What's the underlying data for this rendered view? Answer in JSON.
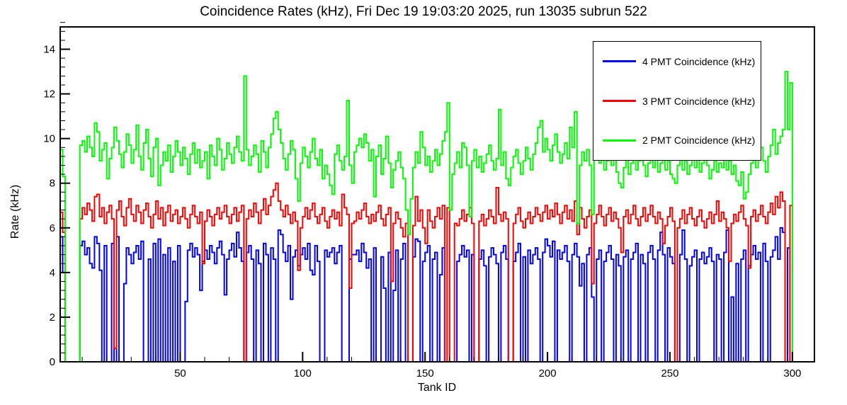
{
  "header": {
    "title": "Coincidence Rates (kHz), Fri Dec 19 19:03:20 2025, run 13035 subrun 522"
  },
  "chart_data": {
    "type": "step-histogram",
    "title": "Coincidence Rates (kHz), Fri Dec 19 19:03:20 2025, run 13035 subrun 522",
    "xlabel": "Tank ID",
    "ylabel": "Rate (kHz)",
    "xlim": [
      1,
      309
    ],
    "ylim": [
      0,
      15
    ],
    "x_bin_start": 1,
    "x_major_ticks": [
      50,
      100,
      150,
      200,
      250,
      300
    ],
    "x_minor_step": 10,
    "y_major_ticks": [
      0,
      2,
      4,
      6,
      8,
      10,
      12,
      14
    ],
    "y_minor_step": 0.4,
    "grid": false,
    "legend_position": "top-right",
    "background": "#ffffff",
    "frame_color": "#000000",
    "series": [
      {
        "name": "4 PMT Coincidence (kHz)",
        "color": "#0000ff",
        "values": [
          5.6,
          4.0,
          0,
          0,
          0,
          0,
          0,
          0,
          5.2,
          5.4,
          4.8,
          5.1,
          4.4,
          4.2,
          5.6,
          5.3,
          4.1,
          0,
          5.2,
          0,
          0,
          5.3,
          0,
          5.6,
          0,
          0,
          3.5,
          5.1,
          4.8,
          4.4,
          4.9,
          5.2,
          4.6,
          5.4,
          0,
          0,
          4.6,
          0,
          5.3,
          0,
          5.5,
          0,
          4.8,
          0,
          5.1,
          0,
          4.5,
          0,
          5.2,
          0,
          0,
          2.7,
          5.0,
          5.3,
          4.7,
          5.1,
          4.8,
          3.2,
          4.5,
          5.0,
          4.6,
          5.2,
          4.9,
          4.4,
          5.1,
          5.4,
          4.8,
          3.0,
          4.6,
          5.0,
          5.3,
          4.7,
          5.8,
          5.1,
          4.5,
          0,
          4.9,
          5.2,
          4.6,
          0,
          5.0,
          4.4,
          0,
          5.3,
          4.8,
          0,
          5.1,
          4.6,
          0,
          5.9,
          5.7,
          4.9,
          4.5,
          5.2,
          2.8,
          4.7,
          5.0,
          4.3,
          4.8,
          5.1,
          4.6,
          5.3,
          4.1,
          3.9,
          5.2,
          4.5,
          0,
          0,
          5.0,
          4.7,
          4.9,
          5.1,
          4.4,
          4.9,
          5.2,
          0,
          0,
          0,
          4.6,
          4.8,
          4.8,
          5.0,
          4.5,
          5.3,
          4.9,
          4.2,
          4.6,
          0,
          5.1,
          0,
          0,
          4.7,
          3.3,
          0,
          4.9,
          0,
          3.2,
          5.0,
          0,
          4.6,
          5.3,
          0,
          0,
          0,
          4.7,
          5.5,
          5.4,
          0,
          4.5,
          4.9,
          5.2,
          0,
          4.6,
          4.9,
          0,
          3.9,
          5.1,
          0,
          0,
          0,
          0,
          0,
          4.5,
          4.8,
          5.2,
          4.7,
          5.0,
          0,
          4.8,
          0,
          0,
          4.6,
          5.0,
          4.3,
          0,
          4.7,
          5.1,
          4.8,
          4.4,
          0,
          4.9,
          5.2,
          4.6,
          0,
          0,
          4.5,
          4.9,
          5.3,
          0,
          4.7,
          0,
          5.0,
          4.4,
          4.8,
          5.1,
          4.6,
          0,
          4.9,
          5.5,
          5.2,
          4.7,
          5.4,
          0,
          5.0,
          4.6,
          4.9,
          5.2,
          4.5,
          0,
          4.8,
          5.3,
          4.7,
          3.4,
          4.4,
          0,
          4.8,
          5.1,
          2.9,
          0,
          4.6,
          5.0,
          0,
          4.5,
          4.9,
          5.2,
          4.6,
          0,
          4.8,
          4.3,
          0,
          4.7,
          5.0,
          0,
          4.6,
          4.9,
          5.3,
          0,
          4.8,
          4.4,
          0,
          4.9,
          5.2,
          4.6,
          0,
          5.0,
          5.8,
          4.8,
          0,
          5.1,
          4.7,
          4.4,
          0,
          0,
          4.8,
          5.9,
          4.6,
          0,
          4.3,
          4.7,
          5.0,
          0,
          4.6,
          4.9,
          4.4,
          4.7,
          5.1,
          4.5,
          0,
          4.8,
          4.6,
          0,
          4.9,
          5.9,
          0,
          2.9,
          0,
          4.4,
          0,
          4.6,
          5.0,
          0,
          4.3,
          4.8,
          5.2,
          4.6,
          4.9,
          0,
          5.3,
          4.5,
          0,
          4.7,
          5.0,
          5.6,
          4.6,
          6.0,
          5.8,
          0,
          5.1,
          0,
          0,
          0,
          0,
          0,
          0,
          0
        ]
      },
      {
        "name": "3 PMT Coincidence (kHz)",
        "color": "#ff0000",
        "values": [
          6.7,
          5.8,
          0,
          0,
          0,
          0,
          0,
          0,
          6.4,
          6.9,
          6.6,
          7.1,
          6.8,
          6.3,
          7.4,
          7.5,
          6.5,
          6.9,
          6.2,
          6.7,
          7.0,
          6.4,
          0.6,
          6.8,
          7.2,
          6.5,
          6.1,
          6.9,
          7.3,
          6.6,
          6.3,
          7.0,
          6.7,
          6.2,
          6.8,
          7.1,
          6.5,
          6.0,
          6.6,
          7.2,
          6.4,
          6.9,
          6.1,
          6.7,
          7.0,
          6.3,
          6.6,
          6.8,
          6.2,
          6.5,
          6.9,
          6.4,
          6.0,
          6.6,
          7.0,
          6.5,
          6.2,
          6.7,
          4.4,
          6.3,
          6.8,
          6.5,
          6.1,
          6.6,
          6.9,
          6.4,
          6.7,
          7.0,
          6.5,
          6.2,
          6.6,
          6.9,
          6.3,
          6.7,
          7.0,
          0,
          6.4,
          6.8,
          6.5,
          7.1,
          6.7,
          6.2,
          6.8,
          7.3,
          6.6,
          7.0,
          7.4,
          7.7,
          8.0,
          7.2,
          6.8,
          6.5,
          7.0,
          6.6,
          6.2,
          6.7,
          6.3,
          4.1,
          6.0,
          6.5,
          6.9,
          6.4,
          6.8,
          7.1,
          6.5,
          6.2,
          6.6,
          6.9,
          6.3,
          6.0,
          6.5,
          6.8,
          6.4,
          6.7,
          6.1,
          7.5,
          6.9,
          6.6,
          3.3,
          6.2,
          6.3,
          6.7,
          6.4,
          6.8,
          7.1,
          6.5,
          6.2,
          6.6,
          6.3,
          6.7,
          7.0,
          6.4,
          6.1,
          6.6,
          6.9,
          3.6,
          6.2,
          6.7,
          6.4,
          6.0,
          5.6,
          6.2,
          0,
          0,
          6.1,
          7.4,
          6.3,
          6.8,
          6.0,
          5.3,
          6.8,
          6.3,
          6.0,
          6.5,
          6.9,
          6.4,
          7.0,
          0,
          6.9,
          0,
          0,
          6.2,
          6.1,
          6.4,
          6.8,
          6.3,
          6.6,
          6.9,
          6.2,
          0,
          0,
          6.3,
          6.6,
          6.1,
          6.4,
          6.8,
          6.5,
          6.2,
          7.8,
          6.6,
          6.3,
          6.7,
          6.4,
          0,
          0,
          6.2,
          6.6,
          6.9,
          6.3,
          6.0,
          6.4,
          6.7,
          6.2,
          6.5,
          6.9,
          6.6,
          6.3,
          6.7,
          7.0,
          6.4,
          6.8,
          6.5,
          7.1,
          6.6,
          6.2,
          6.7,
          7.0,
          6.4,
          6.8,
          6.3,
          7.2,
          5.7,
          6.9,
          6.4,
          6.0,
          6.5,
          6.8,
          3.5,
          6.2,
          6.6,
          7.0,
          6.5,
          6.1,
          6.6,
          6.9,
          6.3,
          6.7,
          6.4,
          6.0,
          4.9,
          6.5,
          6.8,
          6.2,
          6.6,
          7.0,
          6.4,
          6.1,
          6.5,
          6.9,
          6.3,
          6.6,
          7.0,
          6.5,
          6.2,
          6.7,
          6.4,
          5.3,
          6.1,
          6.5,
          6.9,
          6.3,
          0,
          6.0,
          6.4,
          6.8,
          6.2,
          6.6,
          6.9,
          6.4,
          6.1,
          6.5,
          6.8,
          6.3,
          6.0,
          6.4,
          6.7,
          6.2,
          6.6,
          7.2,
          6.3,
          6.7,
          6.4,
          6.0,
          4.5,
          6.2,
          6.6,
          6.3,
          6.7,
          7.0,
          6.4,
          6.1,
          4.2,
          6.5,
          6.8,
          6.3,
          6.6,
          7.0,
          6.5,
          6.2,
          6.7,
          7.1,
          6.6,
          7.4,
          6.9,
          7.6,
          7.2,
          0,
          0,
          7.0,
          0,
          0,
          0,
          0,
          0,
          0
        ]
      },
      {
        "name": "2 PMT Coincidence (kHz)",
        "color": "#00ff00",
        "values": [
          9.5,
          8.3,
          0,
          0,
          0,
          0,
          0,
          0,
          9.7,
          9.9,
          9.4,
          10.1,
          9.6,
          9.2,
          10.7,
          10.3,
          9.0,
          9.5,
          9.8,
          8.2,
          9.1,
          9.6,
          10.5,
          9.9,
          9.3,
          8.7,
          9.4,
          10.2,
          9.7,
          8.9,
          9.5,
          10.6,
          9.2,
          8.6,
          9.8,
          10.4,
          9.1,
          8.3,
          9.6,
          10.0,
          7.9,
          8.8,
          9.4,
          9.0,
          9.7,
          8.5,
          9.2,
          9.9,
          9.4,
          8.8,
          9.6,
          9.1,
          8.4,
          9.3,
          9.8,
          8.9,
          9.5,
          8.7,
          9.0,
          9.4,
          8.2,
          9.7,
          9.2,
          8.8,
          10.0,
          9.5,
          8.6,
          9.1,
          9.8,
          9.3,
          8.9,
          9.6,
          10.1,
          9.4,
          9.0,
          12.8,
          9.5,
          8.8,
          9.2,
          9.7,
          9.3,
          8.5,
          9.9,
          9.4,
          8.7,
          9.6,
          10.2,
          10.9,
          11.2,
          10.4,
          9.8,
          9.1,
          8.6,
          9.3,
          9.9,
          9.5,
          8.2,
          7.2,
          8.9,
          9.6,
          9.2,
          8.7,
          9.4,
          10.0,
          9.1,
          8.8,
          9.5,
          8.2,
          8.8,
          8.4,
          7.9,
          7.5,
          9.3,
          9.7,
          9.0,
          8.6,
          9.2,
          11.7,
          8.8,
          8.0,
          9.4,
          9.7,
          10.0,
          9.6,
          10.2,
          9.8,
          9.0,
          9.5,
          7.4,
          9.2,
          9.7,
          8.4,
          9.1,
          10.1,
          8.9,
          7.8,
          8.6,
          9.0,
          9.4,
          8.7,
          8.2,
          6.8,
          5.7,
          7.3,
          8.7,
          9.4,
          8.9,
          10.3,
          9.6,
          8.8,
          9.2,
          8.5,
          9.0,
          9.5,
          8.8,
          9.3,
          9.9,
          10.3,
          11.6,
          6.8,
          8.4,
          8.9,
          9.4,
          8.7,
          9.8,
          9.6,
          8.8,
          6.5,
          9.0,
          9.5,
          8.7,
          9.2,
          8.5,
          8.9,
          9.3,
          9.7,
          9.0,
          8.6,
          9.1,
          11.3,
          8.8,
          9.4,
          8.2,
          7.9,
          8.7,
          9.2,
          9.5,
          8.9,
          8.4,
          9.0,
          9.6,
          9.1,
          8.6,
          9.3,
          9.8,
          10.5,
          10.8,
          9.4,
          10.0,
          9.5,
          9.0,
          9.7,
          10.2,
          9.4,
          8.9,
          9.3,
          9.8,
          9.1,
          10.5,
          9.6,
          11.2,
          6.2,
          8.8,
          9.4,
          9.0,
          9.5,
          8.8,
          6.6,
          9.1,
          9.6,
          8.9,
          9.3,
          8.6,
          9.0,
          9.4,
          8.8,
          9.2,
          8.5,
          8.0,
          7.8,
          8.7,
          9.1,
          8.4,
          8.9,
          9.3,
          8.6,
          9.0,
          9.5,
          8.8,
          8.3,
          8.9,
          9.4,
          8.7,
          9.1,
          8.5,
          8.9,
          9.3,
          8.6,
          9.0,
          8.4,
          8.2,
          8.0,
          8.8,
          9.2,
          8.6,
          9.0,
          8.4,
          8.8,
          9.3,
          8.7,
          9.1,
          8.5,
          8.9,
          9.4,
          8.8,
          8.2,
          8.6,
          9.0,
          8.5,
          8.9,
          8.7,
          9.2,
          8.6,
          9.0,
          8.4,
          8.8,
          8.1,
          7.9,
          8.5,
          7.3,
          7.6,
          8.4,
          8.9,
          9.3,
          8.7,
          9.1,
          9.6,
          9.0,
          8.5,
          9.2,
          9.7,
          10.4,
          9.3,
          9.8,
          10.1,
          10.4,
          13.0,
          10.4,
          12.5,
          0,
          0,
          0,
          0,
          0,
          0
        ]
      }
    ]
  }
}
